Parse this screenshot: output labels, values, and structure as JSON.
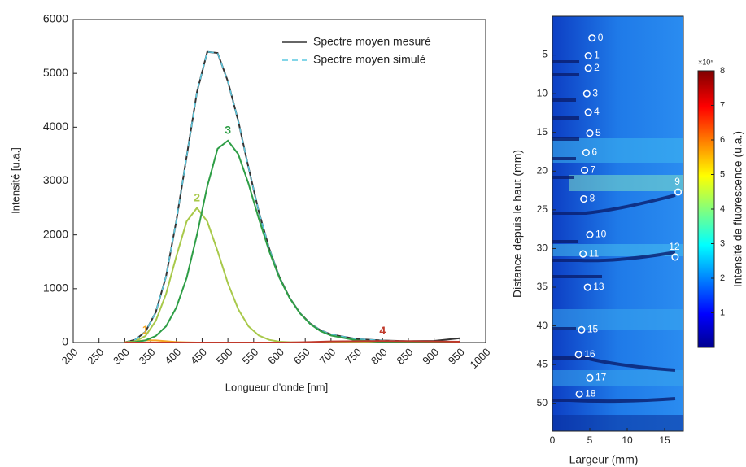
{
  "chart_data": [
    {
      "type": "line",
      "xlabel": "Longueur d’onde [nm]",
      "ylabel": "Intensité [u.a.]",
      "xlim": [
        200,
        1000
      ],
      "xticks": [
        200,
        250,
        300,
        350,
        400,
        450,
        500,
        550,
        600,
        650,
        700,
        750,
        800,
        850,
        900,
        950,
        1000
      ],
      "ylim": [
        0,
        6000
      ],
      "yticks": [
        0,
        1000,
        2000,
        3000,
        4000,
        5000,
        6000
      ],
      "legend": "upper right",
      "x": [
        300,
        320,
        340,
        360,
        380,
        400,
        420,
        440,
        460,
        480,
        500,
        520,
        540,
        560,
        580,
        600,
        620,
        640,
        660,
        680,
        700,
        750,
        800,
        850,
        900,
        950
      ],
      "series": [
        {
          "name": "Spectre moyen mesuré",
          "color": "#333333",
          "dash": false,
          "values": [
            5,
            50,
            200,
            560,
            1225,
            2260,
            3453,
            4650,
            5400,
            5380,
            4850,
            4120,
            3250,
            2430,
            1750,
            1215,
            827,
            545,
            350,
            225,
            150,
            65,
            38,
            25,
            30,
            80
          ]
        },
        {
          "name": "Spectre moyen simulé",
          "color": "#5bc8e0",
          "dash": true,
          "values": [
            5,
            50,
            200,
            560,
            1225,
            2260,
            3453,
            4650,
            5400,
            5380,
            4850,
            4120,
            3250,
            2430,
            1750,
            1215,
            827,
            545,
            350,
            225,
            150,
            65,
            38,
            25,
            20,
            15
          ]
        },
        {
          "label": "1",
          "color": "#f5a623",
          "dash": false,
          "values": [
            5,
            20,
            40,
            40,
            25,
            10,
            3,
            0,
            0,
            0,
            0,
            0,
            0,
            0,
            0,
            0,
            0,
            0,
            0,
            0,
            0,
            0,
            0,
            0,
            0,
            0
          ]
        },
        {
          "label": "2",
          "color": "#a8c94a",
          "dash": false,
          "values": [
            0,
            20,
            120,
            400,
            900,
            1600,
            2250,
            2500,
            2250,
            1700,
            1100,
            620,
            300,
            130,
            50,
            15,
            5,
            0,
            0,
            0,
            0,
            0,
            0,
            0,
            0,
            0
          ]
        },
        {
          "label": "3",
          "color": "#2e9e46",
          "dash": false,
          "values": [
            0,
            10,
            40,
            120,
            300,
            650,
            1200,
            2000,
            2900,
            3600,
            3750,
            3500,
            2950,
            2300,
            1700,
            1200,
            820,
            540,
            340,
            210,
            130,
            40,
            10,
            0,
            0,
            0
          ]
        },
        {
          "label": "4",
          "color": "#c0392b",
          "dash": false,
          "values": [
            0,
            0,
            0,
            0,
            0,
            0,
            0,
            0,
            0,
            0,
            0,
            0,
            0,
            0,
            0,
            0,
            2,
            5,
            10,
            15,
            20,
            25,
            28,
            25,
            20,
            15
          ]
        }
      ]
    },
    {
      "type": "scatter",
      "xlabel": "Largeur (mm)",
      "ylabel": "Distance depuis le haut (mm)",
      "xlim": [
        0,
        17.5
      ],
      "xticks": [
        0,
        5,
        10,
        15
      ],
      "ylim": [
        53.6,
        0
      ],
      "yticks": [
        5,
        10,
        15,
        20,
        25,
        30,
        35,
        40,
        45,
        50
      ],
      "x": [
        5.3,
        4.8,
        4.8,
        4.6,
        4.8,
        5.0,
        4.5,
        4.3,
        4.2,
        16.8,
        5.0,
        4.1,
        16.4,
        4.7,
        3.9,
        3.5,
        5.0,
        3.6
      ],
      "y": [
        2.8,
        5.1,
        6.7,
        10.0,
        12.4,
        15.1,
        17.6,
        19.9,
        23.6,
        22.7,
        28.2,
        30.7,
        31.1,
        35.0,
        40.5,
        43.7,
        46.7,
        48.8
      ],
      "labels": [
        "0",
        "1",
        "2",
        "3",
        "4",
        "5",
        "6",
        "7",
        "8",
        "9",
        "10",
        "11",
        "12",
        "13",
        "15",
        "16",
        "17",
        "18"
      ],
      "colorbar": {
        "label": "Intensité de fluorescence (u.a.)",
        "multiplier": "×10⁵",
        "lim": [
          0,
          8
        ],
        "ticks": [
          1,
          2,
          3,
          4,
          5,
          6,
          7,
          8
        ]
      }
    }
  ]
}
